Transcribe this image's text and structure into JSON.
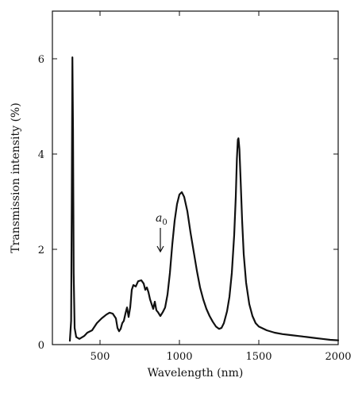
{
  "chart_data": {
    "type": "line",
    "title": "",
    "xlabel": "Wavelength (nm)",
    "ylabel": "Transmission intensity (%)",
    "xlim": [
      200,
      2000
    ],
    "ylim": [
      0,
      7
    ],
    "xticks": [
      500,
      1000,
      1500,
      2000
    ],
    "yticks": [
      0,
      2,
      4,
      6
    ],
    "grid": false,
    "legend": "none",
    "annotation": {
      "text": "a",
      "subscript": "0",
      "x": 880,
      "y_from": 2.45,
      "y_to": 1.95
    },
    "series": [
      {
        "color": "#111111",
        "points": [
          [
            310,
            0.08
          ],
          [
            318,
            0.5
          ],
          [
            322,
            3.0
          ],
          [
            326,
            6.03
          ],
          [
            330,
            4.5
          ],
          [
            334,
            1.5
          ],
          [
            340,
            0.35
          ],
          [
            350,
            0.16
          ],
          [
            370,
            0.12
          ],
          [
            400,
            0.18
          ],
          [
            420,
            0.25
          ],
          [
            450,
            0.3
          ],
          [
            480,
            0.45
          ],
          [
            510,
            0.55
          ],
          [
            540,
            0.63
          ],
          [
            560,
            0.67
          ],
          [
            580,
            0.65
          ],
          [
            600,
            0.55
          ],
          [
            610,
            0.35
          ],
          [
            620,
            0.28
          ],
          [
            630,
            0.33
          ],
          [
            640,
            0.45
          ],
          [
            650,
            0.5
          ],
          [
            660,
            0.65
          ],
          [
            670,
            0.78
          ],
          [
            680,
            0.58
          ],
          [
            690,
            0.78
          ],
          [
            700,
            1.15
          ],
          [
            710,
            1.25
          ],
          [
            725,
            1.22
          ],
          [
            740,
            1.33
          ],
          [
            760,
            1.35
          ],
          [
            775,
            1.28
          ],
          [
            785,
            1.15
          ],
          [
            795,
            1.2
          ],
          [
            805,
            1.1
          ],
          [
            815,
            0.95
          ],
          [
            825,
            0.85
          ],
          [
            835,
            0.75
          ],
          [
            845,
            0.9
          ],
          [
            855,
            0.72
          ],
          [
            865,
            0.68
          ],
          [
            880,
            0.6
          ],
          [
            895,
            0.68
          ],
          [
            910,
            0.78
          ],
          [
            925,
            1.05
          ],
          [
            940,
            1.5
          ],
          [
            955,
            2.1
          ],
          [
            970,
            2.6
          ],
          [
            985,
            2.95
          ],
          [
            1000,
            3.15
          ],
          [
            1015,
            3.2
          ],
          [
            1030,
            3.1
          ],
          [
            1050,
            2.8
          ],
          [
            1070,
            2.35
          ],
          [
            1090,
            1.95
          ],
          [
            1110,
            1.55
          ],
          [
            1130,
            1.2
          ],
          [
            1150,
            0.95
          ],
          [
            1170,
            0.75
          ],
          [
            1190,
            0.6
          ],
          [
            1210,
            0.48
          ],
          [
            1230,
            0.38
          ],
          [
            1250,
            0.33
          ],
          [
            1265,
            0.35
          ],
          [
            1280,
            0.45
          ],
          [
            1300,
            0.7
          ],
          [
            1315,
            1.0
          ],
          [
            1330,
            1.5
          ],
          [
            1345,
            2.3
          ],
          [
            1355,
            3.1
          ],
          [
            1362,
            3.9
          ],
          [
            1368,
            4.3
          ],
          [
            1372,
            4.33
          ],
          [
            1378,
            4.1
          ],
          [
            1385,
            3.5
          ],
          [
            1395,
            2.6
          ],
          [
            1405,
            1.9
          ],
          [
            1420,
            1.3
          ],
          [
            1440,
            0.85
          ],
          [
            1460,
            0.6
          ],
          [
            1480,
            0.45
          ],
          [
            1500,
            0.38
          ],
          [
            1550,
            0.3
          ],
          [
            1600,
            0.25
          ],
          [
            1650,
            0.22
          ],
          [
            1700,
            0.2
          ],
          [
            1750,
            0.18
          ],
          [
            1800,
            0.16
          ],
          [
            1850,
            0.14
          ],
          [
            1900,
            0.12
          ],
          [
            1950,
            0.1
          ],
          [
            2000,
            0.09
          ]
        ]
      }
    ]
  }
}
